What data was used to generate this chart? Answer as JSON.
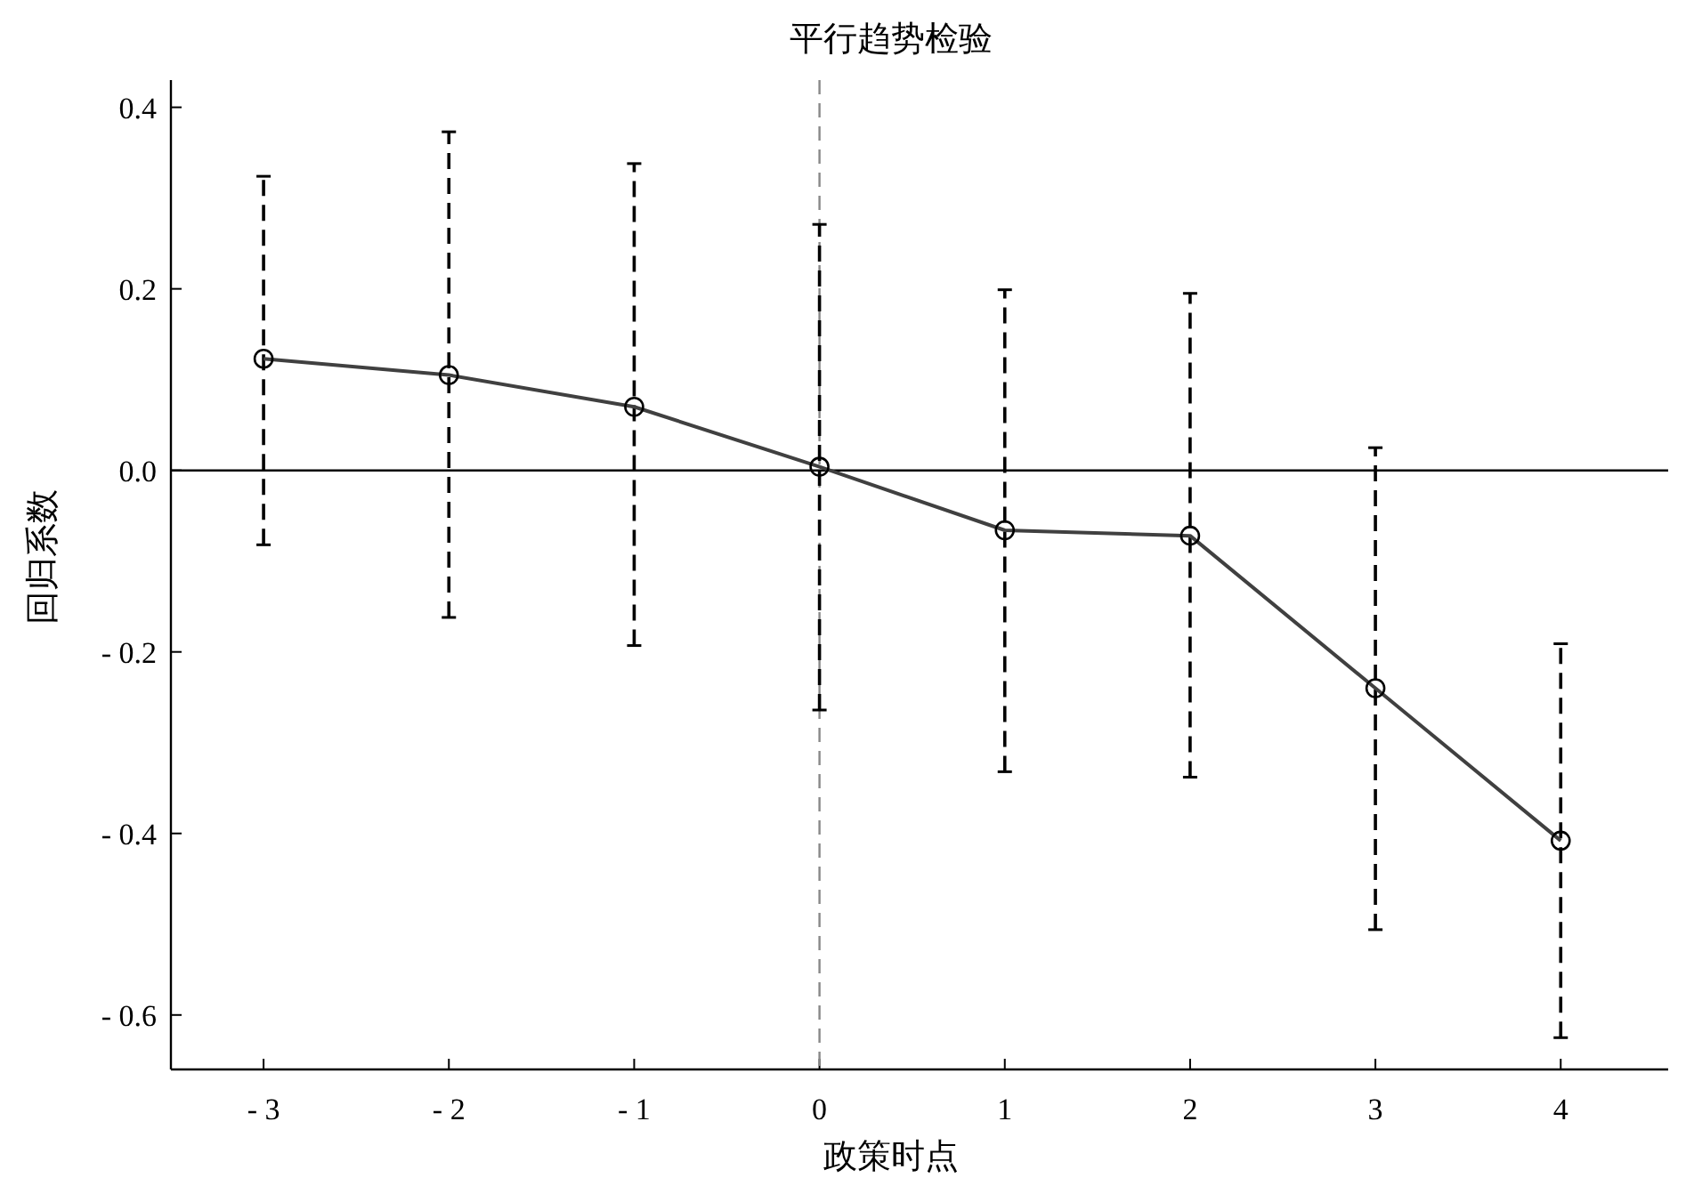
{
  "chart_data": {
    "type": "line",
    "title": "平行趋势检验",
    "xlabel": "政策时点",
    "ylabel": "回归系数",
    "x": [
      -3,
      -2,
      -1,
      0,
      1,
      2,
      3,
      4
    ],
    "series": [
      {
        "color": "#404040",
        "values": [
          0.123,
          0.105,
          0.07,
          0.004,
          -0.066,
          -0.072,
          -0.24,
          -0.408
        ],
        "errors": [
          [
            -0.082,
            0.324
          ],
          [
            -0.162,
            0.373
          ],
          [
            -0.193,
            0.338
          ],
          [
            -0.264,
            0.271
          ],
          [
            -0.332,
            0.199
          ],
          [
            -0.338,
            0.195
          ],
          [
            -0.506,
            0.025
          ],
          [
            -0.625,
            -0.191
          ]
        ]
      }
    ],
    "marker": "circle",
    "line_style": "solid",
    "grid": false,
    "xlim": [
      -3.5,
      4.58
    ],
    "ylim": [
      -0.66,
      0.43
    ],
    "xticks": [
      {
        "value": -3,
        "label": "- 3"
      },
      {
        "value": -2,
        "label": "- 2"
      },
      {
        "value": -1,
        "label": "- 1"
      },
      0,
      1,
      2,
      3,
      4
    ],
    "yticks": [
      {
        "value": -0.6,
        "label": "- 0.6"
      },
      {
        "value": -0.4,
        "label": "- 0.4"
      },
      {
        "value": -0.2,
        "label": "- 0.2"
      },
      {
        "value": 0,
        "label": "0.0"
      },
      0.2,
      0.4
    ],
    "ref_lines": [
      {
        "axis": "y",
        "value": 0,
        "color": "#000000",
        "line_style": "solid"
      },
      {
        "axis": "x",
        "value": 0,
        "color": "#888888",
        "line_style": "dashed"
      }
    ]
  }
}
